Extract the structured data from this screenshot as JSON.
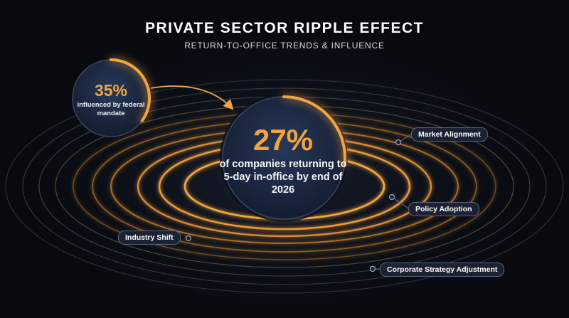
{
  "header": {
    "title": "PRIVATE SECTOR RIPPLE EFFECT",
    "subtitle": "RETURN-TO-OFFICE TRENDS & INFLUENCE"
  },
  "center_stat": {
    "value": "27%",
    "description": "of companies returning to 5-day in-office by end of 2026",
    "fraction": 0.27
  },
  "side_stat": {
    "value": "35%",
    "description": "influenced by federal mandate",
    "fraction": 0.35
  },
  "labels": {
    "market_alignment": "Market Alignment",
    "policy_adoption": "Policy Adoption",
    "industry_shift": "Industry Shift",
    "corporate_strategy": "Corporate Strategy Adjustment"
  },
  "colors": {
    "background": "#07090e",
    "accent": "#f3a53c",
    "circle_fill": "#1c2a44",
    "pill_fill": "#1b2332"
  }
}
